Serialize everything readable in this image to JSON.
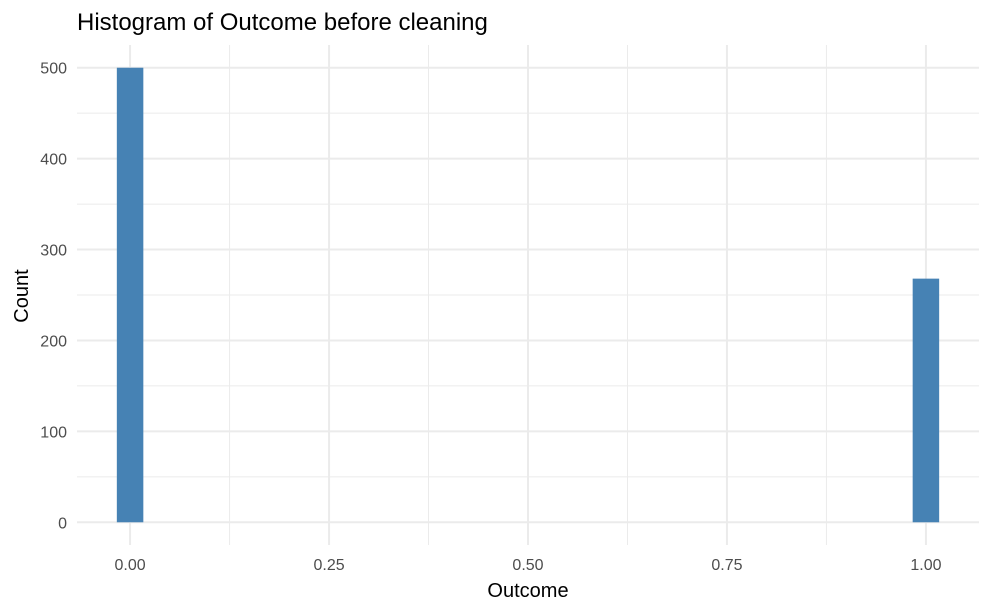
{
  "chart_data": {
    "type": "bar",
    "title": "Histogram of Outcome before cleaning",
    "xlabel": "Outcome",
    "ylabel": "Count",
    "x_ticks": [
      0,
      0.25,
      0.5,
      0.75,
      1
    ],
    "x_tick_labels": [
      "0.00",
      "0.25",
      "0.50",
      "0.75",
      "1.00"
    ],
    "y_ticks": [
      0,
      100,
      200,
      300,
      400,
      500
    ],
    "y_tick_labels": [
      "0",
      "100",
      "200",
      "300",
      "400",
      "500"
    ],
    "xlim": [
      -0.0667,
      1.0667
    ],
    "ylim": [
      -25,
      525
    ],
    "bars": [
      {
        "x": 0,
        "value": 500
      },
      {
        "x": 1,
        "value": 268
      }
    ],
    "bin_width": 0.0333,
    "bar_color": "#4682B4",
    "grid": true,
    "legend": "none"
  }
}
